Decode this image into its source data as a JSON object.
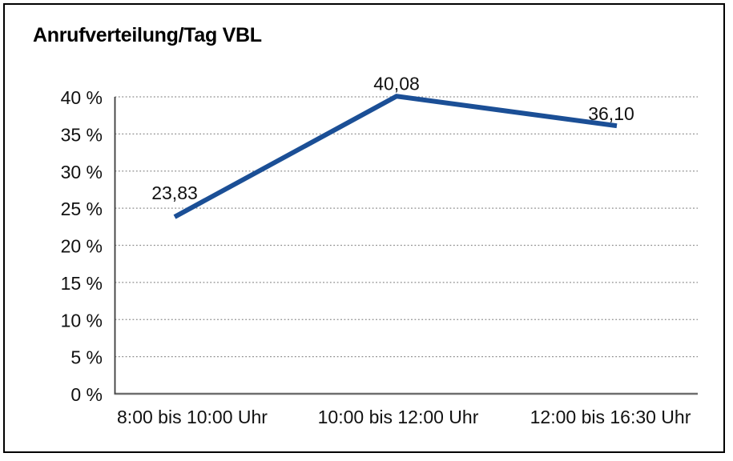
{
  "title": "Anrufverteilung/Tag VBL",
  "colors": {
    "line": "#1b4f96",
    "grid": "#8c8c8c",
    "y_axis": "#3c3c3c",
    "baseline": "#6e6e6e",
    "text": "#111111",
    "frame_border": "#000000",
    "background": "#ffffff"
  },
  "chart_data": {
    "type": "line",
    "title": "Anrufverteilung/Tag VBL",
    "categories": [
      "8:00 bis 10:00 Uhr",
      "10:00 bis 12:00 Uhr",
      "12:00 bis 16:30 Uhr"
    ],
    "series": [
      {
        "name": "Anrufverteilung",
        "values": [
          23.83,
          40.08,
          36.1
        ]
      }
    ],
    "point_labels": [
      "23,83",
      "40,08",
      "36,10"
    ],
    "ylim": [
      0,
      40
    ],
    "ytick_step": 5,
    "ytick_labels": [
      "0 %",
      "5 %",
      "10 %",
      "15 %",
      "20 %",
      "25 %",
      "30 %",
      "35 %",
      "40 %"
    ],
    "xlabel": "",
    "ylabel": "",
    "grid": "horizontal-dotted",
    "legend": "none",
    "layout": {
      "plot_left": 143.5,
      "plot_right": 871,
      "plot_top": 121,
      "plot_bottom": 492,
      "point_x": [
        218,
        495,
        770
      ],
      "xlabel_x": [
        240,
        497,
        762
      ],
      "xlabel_baseline_y": 529,
      "ytick_right_edge_x": 128,
      "ytick_baseline_offset": 9,
      "point_label_dx": [
        0,
        0,
        -7
      ],
      "point_label_dy": [
        -22,
        -8,
        -7
      ],
      "line_width": 6,
      "grid_width": 1.2,
      "baseline_width": 2.5,
      "y_axis_width": 1.8
    }
  }
}
